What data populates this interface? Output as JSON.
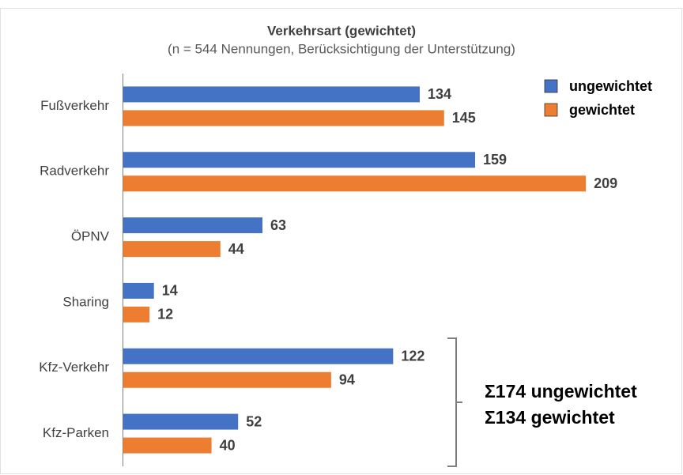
{
  "chart_data": {
    "type": "bar",
    "orientation": "horizontal",
    "title": "Verkehrsart (gewichtet)",
    "subtitle": "(n = 544 Nennungen, Berücksichtigung der Unterstützung)",
    "categories": [
      "Fußverkehr",
      "Radverkehr",
      "ÖPNV",
      "Sharing",
      "Kfz-Verkehr",
      "Kfz-Parken"
    ],
    "series": [
      {
        "name": "ungewichtet",
        "color": "#4472c4",
        "values": [
          134,
          159,
          63,
          14,
          122,
          52
        ]
      },
      {
        "name": "gewichtet",
        "color": "#ed7d31",
        "values": [
          145,
          209,
          44,
          12,
          94,
          40
        ]
      }
    ],
    "xlim": [
      0,
      250
    ],
    "legend": "top-right",
    "annotations": [
      "Σ174 ungewichtet",
      "Σ134 gewichtet"
    ]
  }
}
